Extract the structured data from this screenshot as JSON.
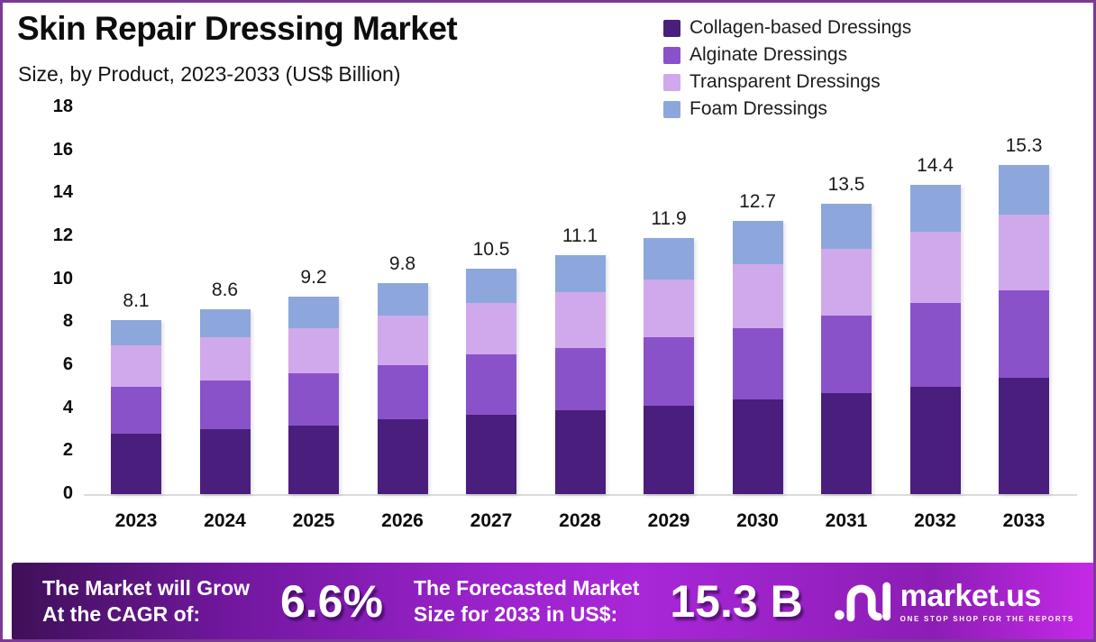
{
  "header": {
    "title": "Skin Repair Dressing Market",
    "subtitle": "Size, by Product, 2023-2033 (US$ Billion)"
  },
  "chart_data": {
    "type": "bar",
    "stacked": true,
    "title": "Skin Repair Dressing Market Size, by Product, 2023-2033 (US$ Billion)",
    "categories": [
      "2023",
      "2024",
      "2025",
      "2026",
      "2027",
      "2028",
      "2029",
      "2030",
      "2031",
      "2032",
      "2033"
    ],
    "series": [
      {
        "name": "Collagen-based Dressings",
        "color": "#4a1e7c",
        "values": [
          2.8,
          3.0,
          3.2,
          3.5,
          3.7,
          3.9,
          4.1,
          4.4,
          4.7,
          5.0,
          5.4
        ]
      },
      {
        "name": "Alginate Dressings",
        "color": "#8a52c8",
        "values": [
          2.2,
          2.3,
          2.4,
          2.5,
          2.8,
          2.9,
          3.2,
          3.3,
          3.6,
          3.9,
          4.1
        ]
      },
      {
        "name": "Transparent Dressings",
        "color": "#d0a9ec",
        "values": [
          1.9,
          2.0,
          2.1,
          2.3,
          2.4,
          2.6,
          2.7,
          3.0,
          3.1,
          3.3,
          3.5
        ]
      },
      {
        "name": "Foam Dressings",
        "color": "#8da7dc",
        "values": [
          1.2,
          1.3,
          1.5,
          1.5,
          1.6,
          1.7,
          1.9,
          2.0,
          2.1,
          2.2,
          2.3
        ]
      }
    ],
    "totals": [
      8.1,
      8.6,
      9.2,
      9.8,
      10.5,
      11.1,
      11.9,
      12.7,
      13.5,
      14.4,
      15.3
    ],
    "xlabel": "",
    "ylabel": "",
    "yticks": [
      0,
      2,
      4,
      6,
      8,
      10,
      12,
      14,
      16,
      18
    ],
    "ylim": [
      0,
      18
    ],
    "grid": false,
    "legend_position": "top-right"
  },
  "banner": {
    "cagr_label_line1": "The Market will Grow",
    "cagr_label_line2": "At the CAGR of:",
    "cagr_value": "6.6%",
    "forecast_label_line1": "The Forecasted Market",
    "forecast_label_line2": "Size for 2033 in US$:",
    "forecast_value": "15.3 B",
    "logo_text": "market.us",
    "logo_tagline": "ONE STOP SHOP FOR THE REPORTS"
  },
  "colors": {
    "page_border": "#7b3a96",
    "axis_line": "#dcdcdc",
    "banner_gradient_start": "#3f1058",
    "banner_gradient_mid": "#a827d8",
    "banner_gradient_end": "#c62ae8"
  }
}
